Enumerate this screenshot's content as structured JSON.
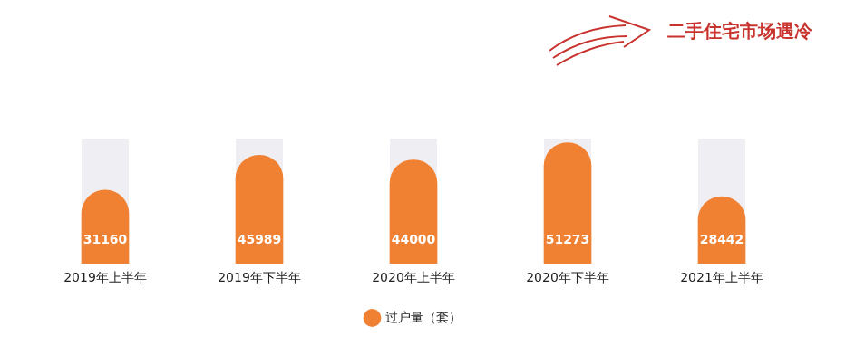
{
  "chart_data": {
    "type": "bar",
    "annotation": "二手住宅市场遇冷",
    "categories": [
      "2019年上半年",
      "2019年下半年",
      "2020年上半年",
      "2020年下半年",
      "2021年上半年"
    ],
    "series": [
      {
        "name": "过户量（套）",
        "color": "#f08133",
        "values": [
          31160,
          45989,
          44000,
          51273,
          28442
        ]
      }
    ],
    "ylim": [
      0,
      53000
    ],
    "grid": false,
    "legend": "bottom",
    "data_labels": true,
    "tick_labels": "x"
  }
}
